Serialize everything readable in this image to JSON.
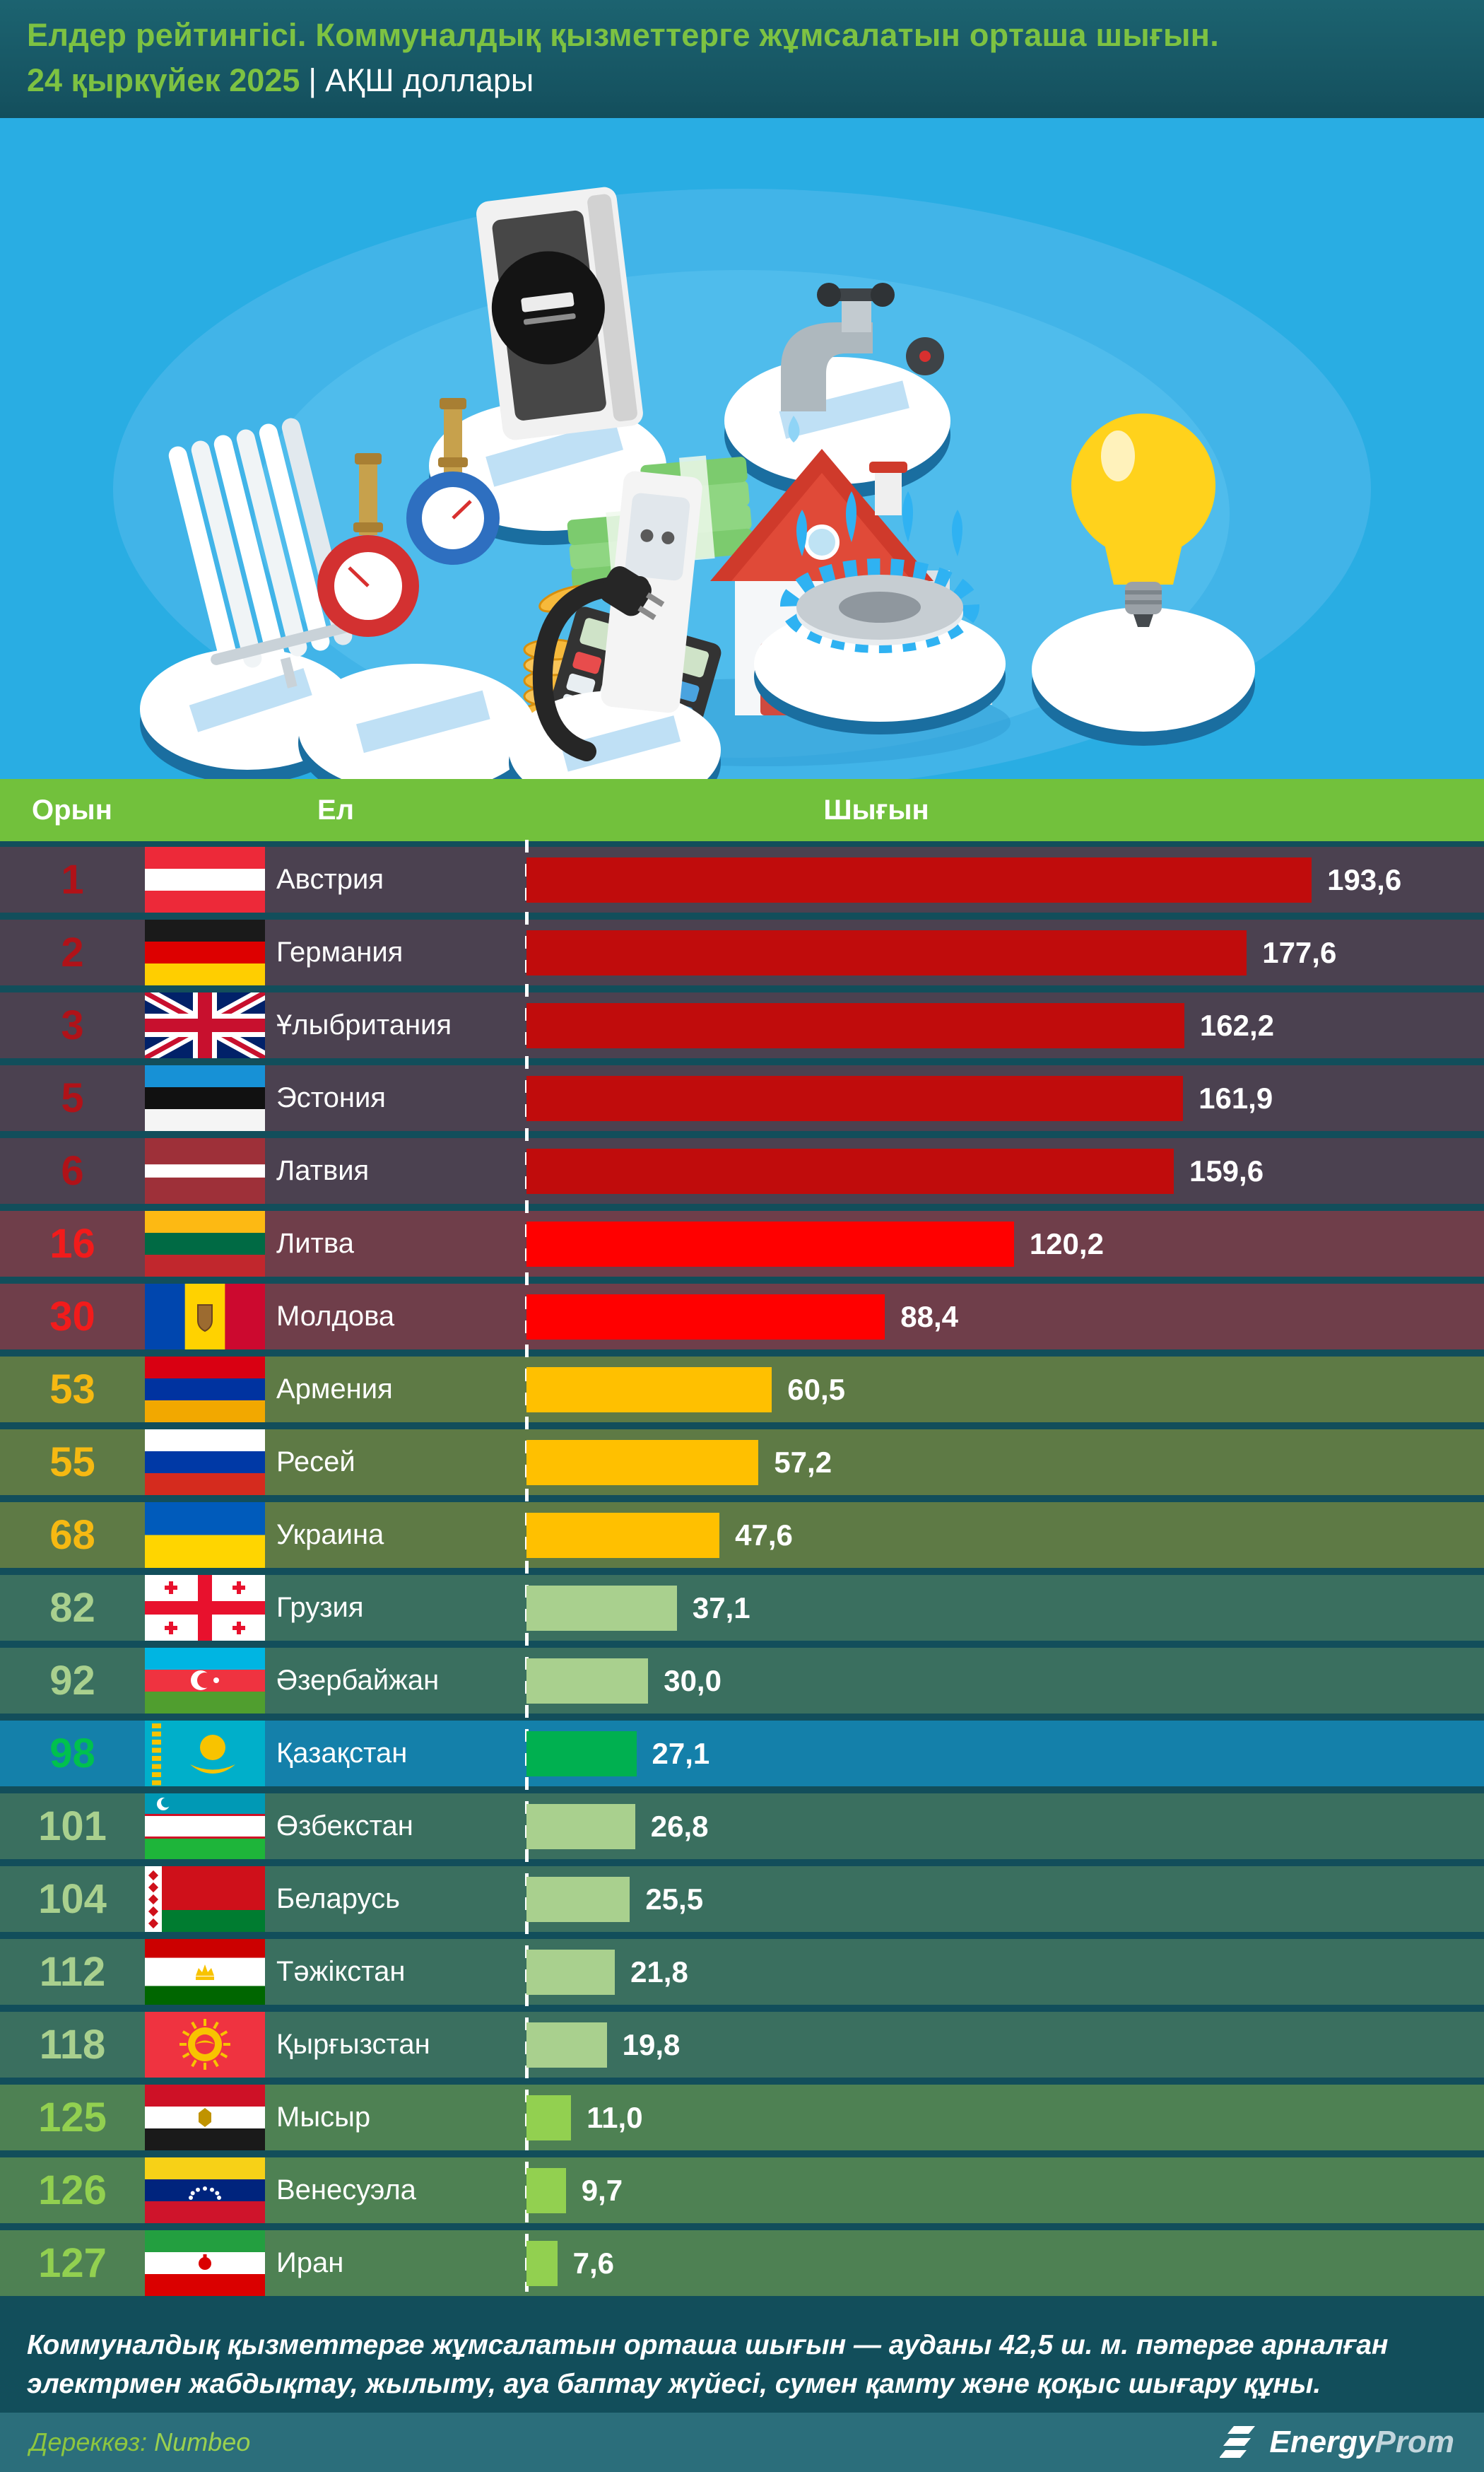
{
  "header": {
    "title": "Елдер рейтингісі. Коммуналдық қызметтерге жұмсалатын орташа шығын.",
    "date": "24 қыркүйек 2025",
    "separator": "|",
    "unit": "АҚШ доллары"
  },
  "table": {
    "columns": {
      "rank": "Орын",
      "country": "Ел",
      "value": "Шығын"
    },
    "max_value": 193.6,
    "rows": [
      {
        "rank": "1",
        "country": "Австрия",
        "value": 193.6,
        "value_str": "193,6",
        "row_bg": "#4b4150",
        "rank_color": "#b01218",
        "bar_color": "#c00c0c",
        "flag_name": "austria",
        "flag": {
          "t": "h",
          "s": [
            "#ed2939",
            "#ffffff",
            "#ed2939"
          ],
          "r": [
            1,
            1,
            1
          ]
        }
      },
      {
        "rank": "2",
        "country": "Германия",
        "value": 177.6,
        "value_str": "177,6",
        "row_bg": "#4b4150",
        "rank_color": "#b01218",
        "bar_color": "#c00c0c",
        "flag_name": "germany",
        "flag": {
          "t": "h",
          "s": [
            "#1a1a1a",
            "#dd0000",
            "#ffce00"
          ],
          "r": [
            1,
            1,
            1
          ]
        }
      },
      {
        "rank": "3",
        "country": "Ұлыбритания",
        "value": 162.2,
        "value_str": "162,2",
        "row_bg": "#4b4150",
        "rank_color": "#b01218",
        "bar_color": "#c00c0c",
        "flag_name": "united-kingdom",
        "flag": {
          "t": "uk"
        }
      },
      {
        "rank": "5",
        "country": "Эстония",
        "value": 161.9,
        "value_str": "161,9",
        "row_bg": "#4b4150",
        "rank_color": "#b01218",
        "bar_color": "#c00c0c",
        "flag_name": "estonia",
        "flag": {
          "t": "h",
          "s": [
            "#1791d6",
            "#111111",
            "#f5f5f5"
          ],
          "r": [
            1,
            1,
            1
          ]
        }
      },
      {
        "rank": "6",
        "country": "Латвия",
        "value": 159.6,
        "value_str": "159,6",
        "row_bg": "#4b4150",
        "rank_color": "#b01218",
        "bar_color": "#c00c0c",
        "flag_name": "latvia",
        "flag": {
          "t": "h",
          "s": [
            "#9e3039",
            "#ffffff",
            "#9e3039"
          ],
          "r": [
            2,
            1,
            2
          ]
        }
      },
      {
        "rank": "16",
        "country": "Литва",
        "value": 120.2,
        "value_str": "120,2",
        "row_bg": "#6f3e4a",
        "rank_color": "#f21b1b",
        "bar_color": "#ff0000",
        "flag_name": "lithuania",
        "flag": {
          "t": "h",
          "s": [
            "#fdb913",
            "#006a44",
            "#c1272d"
          ],
          "r": [
            1,
            1,
            1
          ]
        }
      },
      {
        "rank": "30",
        "country": "Молдова",
        "value": 88.4,
        "value_str": "88,4",
        "row_bg": "#6f3e4a",
        "rank_color": "#f21b1b",
        "bar_color": "#ff0000",
        "flag_name": "moldova",
        "flag": {
          "t": "v",
          "s": [
            "#0046ae",
            "#ffd200",
            "#cc092f"
          ],
          "r": [
            1,
            1,
            1
          ],
          "e": "md"
        }
      },
      {
        "rank": "53",
        "country": "Армения",
        "value": 60.5,
        "value_str": "60,5",
        "row_bg": "#5e7a45",
        "rank_color": "#f6b912",
        "bar_color": "#ffc000",
        "flag_name": "armenia",
        "flag": {
          "t": "h",
          "s": [
            "#d90012",
            "#0033a0",
            "#f2a800"
          ],
          "r": [
            1,
            1,
            1
          ]
        }
      },
      {
        "rank": "55",
        "country": "Ресей",
        "value": 57.2,
        "value_str": "57,2",
        "row_bg": "#5e7a45",
        "rank_color": "#f6b912",
        "bar_color": "#ffc000",
        "flag_name": "russia",
        "flag": {
          "t": "h",
          "s": [
            "#ffffff",
            "#0039a6",
            "#d52b1e"
          ],
          "r": [
            1,
            1,
            1
          ]
        }
      },
      {
        "rank": "68",
        "country": "Украина",
        "value": 47.6,
        "value_str": "47,6",
        "row_bg": "#5e7a45",
        "rank_color": "#f6b912",
        "bar_color": "#ffc000",
        "flag_name": "ukraine",
        "flag": {
          "t": "h",
          "s": [
            "#005bbb",
            "#ffd500"
          ],
          "r": [
            1,
            1
          ]
        }
      },
      {
        "rank": "82",
        "country": "Грузия",
        "value": 37.1,
        "value_str": "37,1",
        "row_bg": "#3a6f5f",
        "rank_color": "#a9d08e",
        "bar_color": "#a9d08e",
        "flag_name": "georgia",
        "flag": {
          "t": "ge"
        }
      },
      {
        "rank": "92",
        "country": "Әзербайжан",
        "value": 30.0,
        "value_str": "30,0",
        "row_bg": "#3a6f5f",
        "rank_color": "#a9d08e",
        "bar_color": "#a9d08e",
        "flag_name": "azerbaijan",
        "flag": {
          "t": "h",
          "s": [
            "#00b5e2",
            "#ef3340",
            "#509e2f"
          ],
          "r": [
            1,
            1,
            1
          ],
          "e": "az"
        }
      },
      {
        "rank": "98",
        "country": "Қазақстан",
        "value": 27.1,
        "value_str": "27,1",
        "row_bg": "#1480aa",
        "rank_color": "#00c14e",
        "bar_color": "#00b050",
        "flag_name": "kazakhstan",
        "flag": {
          "t": "kz"
        }
      },
      {
        "rank": "101",
        "country": "Өзбекстан",
        "value": 26.8,
        "value_str": "26,8",
        "row_bg": "#3a6f5f",
        "rank_color": "#a9d08e",
        "bar_color": "#a9d08e",
        "flag_name": "uzbekistan",
        "flag": {
          "t": "h",
          "s": [
            "#0099b5",
            "#ffffff",
            "#1eb53a"
          ],
          "r": [
            1,
            1,
            1
          ],
          "e": "uz"
        }
      },
      {
        "rank": "104",
        "country": "Беларусь",
        "value": 25.5,
        "value_str": "25,5",
        "row_bg": "#3a6f5f",
        "rank_color": "#a9d08e",
        "bar_color": "#a9d08e",
        "flag_name": "belarus",
        "flag": {
          "t": "by"
        }
      },
      {
        "rank": "112",
        "country": "Тәжікстан",
        "value": 21.8,
        "value_str": "21,8",
        "row_bg": "#3a6f5f",
        "rank_color": "#a9d08e",
        "bar_color": "#a9d08e",
        "flag_name": "tajikistan",
        "flag": {
          "t": "h",
          "s": [
            "#cc0000",
            "#ffffff",
            "#006600"
          ],
          "r": [
            2,
            3,
            2
          ],
          "e": "tj"
        }
      },
      {
        "rank": "118",
        "country": "Қырғызстан",
        "value": 19.8,
        "value_str": "19,8",
        "row_bg": "#3a6f5f",
        "rank_color": "#a9d08e",
        "bar_color": "#a9d08e",
        "flag_name": "kyrgyzstan",
        "flag": {
          "t": "kg"
        }
      },
      {
        "rank": "125",
        "country": "Мысыр",
        "value": 11.0,
        "value_str": "11,0",
        "row_bg": "#4e8153",
        "rank_color": "#92d050",
        "bar_color": "#92d050",
        "flag_name": "egypt",
        "flag": {
          "t": "h",
          "s": [
            "#ce1126",
            "#ffffff",
            "#1a1a1a"
          ],
          "r": [
            1,
            1,
            1
          ],
          "e": "eg"
        }
      },
      {
        "rank": "126",
        "country": "Венесуэла",
        "value": 9.7,
        "value_str": "9,7",
        "row_bg": "#4e8153",
        "rank_color": "#92d050",
        "bar_color": "#92d050",
        "flag_name": "venezuela",
        "flag": {
          "t": "h",
          "s": [
            "#f7d117",
            "#00247d",
            "#cf142b"
          ],
          "r": [
            1,
            1,
            1
          ],
          "e": "ve"
        }
      },
      {
        "rank": "127",
        "country": "Иран",
        "value": 7.6,
        "value_str": "7,6",
        "row_bg": "#4e8153",
        "rank_color": "#92d050",
        "bar_color": "#92d050",
        "flag_name": "iran",
        "flag": {
          "t": "h",
          "s": [
            "#239f40",
            "#ffffff",
            "#da0000"
          ],
          "r": [
            1,
            1,
            1
          ],
          "e": "ir"
        }
      }
    ]
  },
  "footnote": "Коммуналдық қызметтерге жұмсалатын орташа шығын — ауданы 42,5 ш. м. пәтерге арналған электрмен жабдықтау, жылыту, ауа баптау жүйесі, сумен қамту және қоқыс шығару құны.",
  "source": {
    "label": "Дереккөз:",
    "value": "Numbeo"
  },
  "logo": {
    "bold": "Energy",
    "light": "Prom"
  },
  "colors": {
    "accent_green": "#7dc242",
    "table_header_green": "#72c13c",
    "page_teal": "#124e5b",
    "illustration_blue": "#29ade3",
    "kazakhstan_row_blue": "#1480aa"
  },
  "chart_data": {
    "type": "bar",
    "orientation": "horizontal",
    "title": "Елдер рейтингісі. Коммуналдық қызметтерге жұмсалатын орташа шығын.",
    "date": "24 қыркүйек 2025",
    "unit": "АҚШ доллары",
    "categories": [
      "Австрия",
      "Германия",
      "Ұлыбритания",
      "Эстония",
      "Латвия",
      "Литва",
      "Молдова",
      "Армения",
      "Ресей",
      "Украина",
      "Грузия",
      "Әзербайжан",
      "Қазақстан",
      "Өзбекстан",
      "Беларусь",
      "Тәжікстан",
      "Қырғызстан",
      "Мысыр",
      "Венесуэла",
      "Иран"
    ],
    "ranks": [
      1,
      2,
      3,
      5,
      6,
      16,
      30,
      53,
      55,
      68,
      82,
      92,
      98,
      101,
      104,
      112,
      118,
      125,
      126,
      127
    ],
    "values": [
      193.6,
      177.6,
      162.2,
      161.9,
      159.6,
      120.2,
      88.4,
      60.5,
      57.2,
      47.6,
      37.1,
      30.0,
      27.1,
      26.8,
      25.5,
      21.8,
      19.8,
      11.0,
      9.7,
      7.6
    ],
    "highlighted_category": "Қазақстан",
    "xlim": [
      0,
      200
    ],
    "grid": false,
    "legend": false,
    "source": "Numbeo"
  }
}
